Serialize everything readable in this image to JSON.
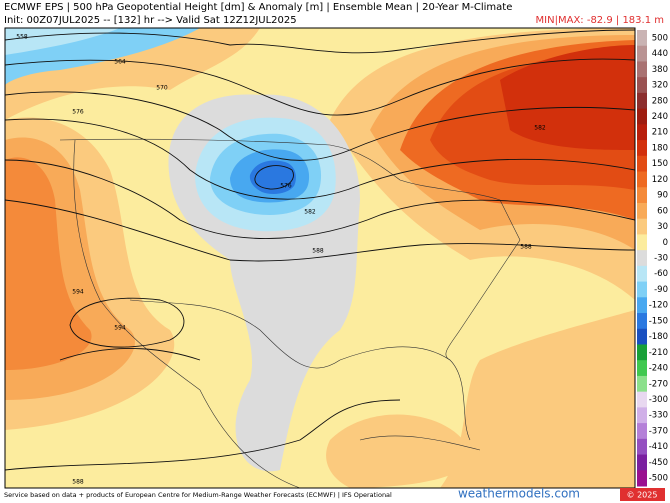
{
  "header": {
    "line1": "ECMWF EPS | 500 hPa Geopotential Height [dm] & Anomaly [m] | Ensemble Mean | 20-Year M-Climate",
    "line2": "Init: 00Z07JUL2025 -- [132] hr --> Valid Sat 12Z12JUL2025",
    "minmax": "MIN|MAX: -82.9 | 183.1 m"
  },
  "contour_labels": [
    "558",
    "564",
    "570",
    "576",
    "582",
    "588",
    "594",
    "594",
    "588",
    "576",
    "582",
    "588"
  ],
  "colorbar": {
    "labels": [
      500,
      440,
      380,
      320,
      280,
      240,
      210,
      180,
      150,
      120,
      90,
      60,
      30,
      0,
      -30,
      -60,
      -90,
      -120,
      -150,
      -180,
      -210,
      -240,
      -270,
      -300,
      -330,
      -370,
      -410,
      -450,
      -500
    ],
    "colors": [
      "#c9b3b3",
      "#b99393",
      "#a97272",
      "#9a5252",
      "#8c2e2e",
      "#9e1c10",
      "#b81e0c",
      "#d2300c",
      "#e24c14",
      "#ee6a22",
      "#f48a3a",
      "#f8aa58",
      "#fbca7e",
      "#fcec9e",
      "#dcdcdc",
      "#b8e6f6",
      "#7fd0f6",
      "#48a8f0",
      "#2a78e0",
      "#1a50c0",
      "#18a038",
      "#40c850",
      "#8ce08c",
      "#e8d8f0",
      "#d0b0e8",
      "#b480d8",
      "#9450c0",
      "#7a20a0",
      "#9a1090"
    ]
  },
  "footer": {
    "credit": "Service based on data + products of European Centre for Medium-Range Weather Forecasts (ECMWF) | IFS Operational",
    "site": "weathermodels.com",
    "copyright": "© 2025"
  }
}
